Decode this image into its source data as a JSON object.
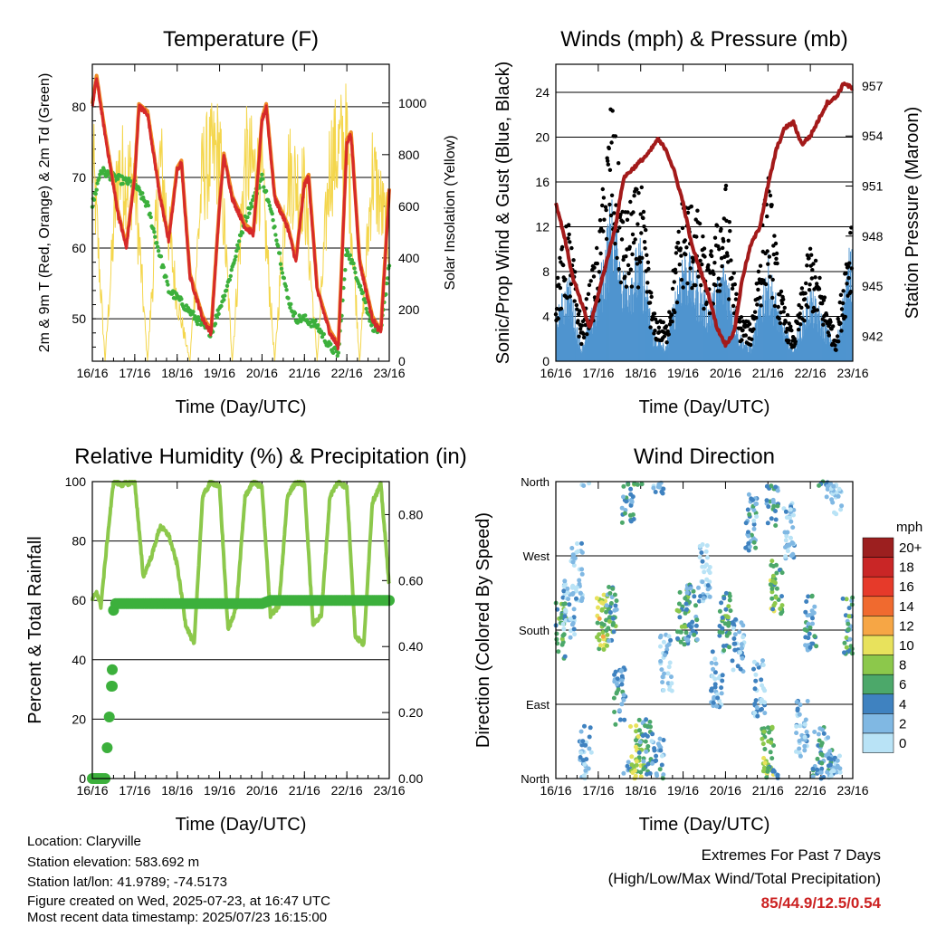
{
  "colors": {
    "temp_2m": "#d62a2a",
    "temp_9m": "#f08a24",
    "dewpoint": "#3cb03c",
    "solar": "#f4d64c",
    "wind_sonic": "#4f94cf",
    "gust": "#000000",
    "pressure": "#a31a1a",
    "rh": "#8cc84b",
    "precip": "#3cb03c",
    "extremes": "#cc2222"
  },
  "info": {
    "location": "Location: Claryville",
    "elevation": "Station elevation: 583.692 m",
    "latlon": "Station lat/lon: 41.9789; -74.5173",
    "created": "Figure created on Wed, 2025-07-23, at 16:47 UTC",
    "recent": "Most recent data timestamp: 2025/07/23 16:15:00"
  },
  "extremes": {
    "title": "Extremes For Past 7 Days",
    "subtitle": "(High/Low/Max Wind/Total Precipitation)",
    "values": "85/44.9/12.5/0.54"
  },
  "chart_data": [
    {
      "type": "line",
      "title": "Temperature (F)",
      "xlabel": "Time (Day/UTC)",
      "ylabel": "2m & 9m T (Red, Orange) & 2m Td (Green)",
      "y2label": "Solar Insolation (Yellow)",
      "x_ticks": [
        "16/16",
        "17/16",
        "18/16",
        "19/16",
        "20/16",
        "21/16",
        "22/16",
        "23/16"
      ],
      "ylim": [
        44,
        86
      ],
      "y_ticks": [
        50,
        60,
        70,
        80
      ],
      "y2lim": [
        0,
        1150
      ],
      "y2_ticks": [
        0,
        200,
        400,
        600,
        800,
        1000
      ],
      "grid": true,
      "series": [
        {
          "name": "2m T",
          "unit": "F",
          "x": [
            0,
            0.1,
            0.3,
            0.6,
            0.8,
            1.0,
            1.1,
            1.3,
            1.6,
            1.8,
            2.0,
            2.1,
            2.3,
            2.6,
            2.8,
            3.0,
            3.1,
            3.3,
            3.6,
            3.8,
            4.0,
            4.1,
            4.3,
            4.6,
            4.8,
            5.0,
            5.1,
            5.3,
            5.6,
            5.8,
            6.0,
            6.1,
            6.3,
            6.6,
            6.8,
            7.0
          ],
          "y": [
            80,
            84,
            76,
            65,
            60,
            70,
            80,
            79,
            67,
            61,
            71,
            72,
            56,
            50,
            48,
            66,
            73,
            67,
            63,
            62,
            78,
            80,
            67,
            63,
            58,
            69,
            70,
            54,
            48,
            46,
            75,
            76,
            58,
            50,
            48,
            68
          ]
        },
        {
          "name": "9m T",
          "unit": "F",
          "x": [
            0,
            1,
            2,
            3,
            4,
            5,
            6,
            7
          ],
          "y": [
            80,
            70,
            71,
            66,
            78,
            69,
            75,
            68
          ]
        },
        {
          "name": "2m Td",
          "unit": "F",
          "x": [
            0,
            0.2,
            0.5,
            1.0,
            1.3,
            1.8,
            2.0,
            2.3,
            2.6,
            2.8,
            3.2,
            3.6,
            4.0,
            4.3,
            4.6,
            4.8,
            5.0,
            5.3,
            5.6,
            5.8,
            6.0,
            6.3,
            6.6,
            6.8,
            7.0
          ],
          "y": [
            66,
            71,
            70,
            69,
            66,
            54,
            53,
            51,
            49,
            48,
            55,
            64,
            70,
            63,
            53,
            50,
            50,
            49,
            46,
            45,
            60,
            55,
            49,
            48,
            58
          ]
        },
        {
          "name": "Solar Insolation",
          "unit": "W/m2",
          "x": [
            0,
            0.3,
            0.6,
            1.0,
            1.3,
            1.6,
            2.0,
            2.3,
            2.6,
            3.0,
            3.3,
            3.6,
            4.0,
            4.3,
            4.6,
            5.0,
            5.3,
            5.6,
            6.0,
            6.3,
            6.6,
            7.0
          ],
          "y": [
            1050,
            0,
            950,
            900,
            0,
            1000,
            300,
            0,
            950,
            1050,
            0,
            1000,
            900,
            0,
            950,
            850,
            0,
            1000,
            1100,
            0,
            950,
            600
          ]
        }
      ]
    },
    {
      "type": "line",
      "title": "Winds (mph) & Pressure (mb)",
      "xlabel": "Time (Day/UTC)",
      "ylabel": "Sonic/Prop Wind & Gust (Blue, Black)",
      "y2label": "Station Pressure (Maroon)",
      "x_ticks": [
        "16/16",
        "17/16",
        "18/16",
        "19/16",
        "20/16",
        "21/16",
        "22/16",
        "23/16"
      ],
      "ylim": [
        0,
        26.5
      ],
      "y_ticks": [
        0,
        4,
        8,
        12,
        16,
        20,
        24
      ],
      "y2lim": [
        940.5,
        958.3
      ],
      "y2_ticks": [
        942,
        945,
        948,
        951,
        954,
        957
      ],
      "grid": true,
      "series": [
        {
          "name": "Sonic/Prop Wind",
          "unit": "mph",
          "x": [
            0,
            0.3,
            0.6,
            1.0,
            1.3,
            1.6,
            2.0,
            2.3,
            2.6,
            3.0,
            3.3,
            3.6,
            4.0,
            4.3,
            4.6,
            5.0,
            5.3,
            5.6,
            6.0,
            6.3,
            6.6,
            7.0
          ],
          "y": [
            3,
            6,
            1,
            5,
            11,
            6,
            8,
            2,
            1,
            8,
            6,
            4,
            7,
            2,
            1,
            7,
            3,
            1,
            5,
            3,
            1,
            9
          ]
        },
        {
          "name": "Gust",
          "unit": "mph",
          "x": [
            0,
            0.3,
            0.6,
            1.0,
            1.3,
            1.6,
            2.0,
            2.3,
            2.6,
            3.0,
            3.3,
            3.6,
            4.0,
            4.3,
            4.6,
            5.0,
            5.3,
            5.6,
            6.0,
            6.3,
            6.6,
            7.0
          ],
          "y": [
            7,
            12,
            3,
            10,
            22,
            12,
            15,
            4,
            3,
            14,
            13,
            8,
            15,
            4,
            3,
            16,
            6,
            2,
            10,
            6,
            2,
            14
          ]
        },
        {
          "name": "Station Pressure",
          "unit": "mb",
          "x": [
            0,
            0.2,
            0.4,
            0.6,
            0.8,
            1.0,
            1.2,
            1.4,
            1.6,
            1.8,
            2.0,
            2.2,
            2.4,
            2.6,
            2.8,
            3.0,
            3.2,
            3.4,
            3.6,
            3.8,
            4.0,
            4.2,
            4.4,
            4.6,
            4.8,
            5.0,
            5.2,
            5.4,
            5.6,
            5.8,
            6.0,
            6.2,
            6.4,
            6.6,
            6.8,
            7.0
          ],
          "y": [
            950,
            948,
            945.5,
            944,
            942.5,
            944.5,
            946.5,
            948.5,
            951.5,
            952,
            952.5,
            953,
            953.8,
            953.2,
            951.8,
            950,
            947.5,
            946,
            944.5,
            942.5,
            941.5,
            942.2,
            945.5,
            947.5,
            948.5,
            951,
            953.2,
            954.5,
            954.8,
            953.5,
            954,
            955,
            956,
            956.3,
            957.2,
            956.8
          ]
        }
      ]
    },
    {
      "type": "line",
      "title": "Relative Humidity (%) & Precipitation (in)",
      "xlabel": "Time (Day/UTC)",
      "ylabel": "Percent & Total Rainfall",
      "x_ticks": [
        "16/16",
        "17/16",
        "18/16",
        "19/16",
        "20/16",
        "21/16",
        "22/16",
        "23/16"
      ],
      "ylim": [
        0,
        100
      ],
      "y_ticks": [
        0,
        20,
        40,
        60,
        80,
        100
      ],
      "y2lim": [
        0,
        0.9
      ],
      "y2_ticks": [
        "0.00",
        "0.20",
        "0.40",
        "0.60",
        "0.80"
      ],
      "grid": true,
      "series": [
        {
          "name": "Relative Humidity",
          "unit": "%",
          "x": [
            0,
            0.1,
            0.2,
            0.35,
            0.5,
            0.7,
            1.0,
            1.2,
            1.4,
            1.6,
            1.8,
            2.0,
            2.2,
            2.4,
            2.6,
            2.8,
            3.0,
            3.2,
            3.4,
            3.6,
            3.8,
            4.0,
            4.2,
            4.4,
            4.6,
            4.8,
            5.0,
            5.2,
            5.4,
            5.6,
            5.8,
            6.0,
            6.2,
            6.4,
            6.6,
            6.8,
            7.0
          ],
          "y": [
            60,
            63,
            58,
            80,
            100,
            99,
            100,
            68,
            75,
            85,
            82,
            72,
            52,
            45,
            95,
            100,
            98,
            50,
            58,
            95,
            100,
            98,
            55,
            58,
            95,
            100,
            99,
            52,
            55,
            95,
            100,
            98,
            48,
            45,
            93,
            99,
            65
          ]
        },
        {
          "name": "Total Precipitation",
          "unit": "in",
          "x": [
            0,
            0.3,
            0.45,
            0.48,
            0.5,
            0.55,
            1.0,
            2.0,
            3.0,
            4.0,
            4.2,
            5.0,
            6.0,
            7.0
          ],
          "y": [
            0,
            0,
            0.28,
            0.33,
            0.51,
            0.53,
            0.53,
            0.53,
            0.53,
            0.53,
            0.54,
            0.54,
            0.54,
            0.54
          ]
        }
      ]
    },
    {
      "type": "scatter",
      "title": "Wind Direction",
      "xlabel": "Time (Day/UTC)",
      "ylabel": "Direction (Colored By Speed)",
      "x_ticks": [
        "16/16",
        "17/16",
        "18/16",
        "19/16",
        "20/16",
        "21/16",
        "22/16",
        "23/16"
      ],
      "y_ticks": [
        "North",
        "East",
        "South",
        "West",
        "North"
      ],
      "ylim": [
        0,
        360
      ],
      "grid": true,
      "colorbar": {
        "title": "mph",
        "labels": [
          "20+",
          "18",
          "16",
          "14",
          "12",
          "10",
          "8",
          "6",
          "4",
          "2",
          "0"
        ],
        "colors": [
          "#9c1f1f",
          "#c92626",
          "#e63a2a",
          "#f06a2f",
          "#f6a645",
          "#e8e25c",
          "#8cc84b",
          "#4ca86a",
          "#3f82c0",
          "#80b8e3",
          "#b9e3f6"
        ]
      },
      "clusters": [
        {
          "x": 0.1,
          "dir": 180,
          "speed": 6
        },
        {
          "x": 0.3,
          "dir": 205,
          "speed": 2
        },
        {
          "x": 0.5,
          "dir": 250,
          "speed": 1
        },
        {
          "x": 0.7,
          "dir": 30,
          "speed": 2
        },
        {
          "x": 1.1,
          "dir": 190,
          "speed": 9
        },
        {
          "x": 1.3,
          "dir": 200,
          "speed": 5
        },
        {
          "x": 1.5,
          "dir": 100,
          "speed": 4
        },
        {
          "x": 1.7,
          "dir": 345,
          "speed": 4
        },
        {
          "x": 1.9,
          "dir": 30,
          "speed": 8
        },
        {
          "x": 2.1,
          "dir": 40,
          "speed": 5
        },
        {
          "x": 2.4,
          "dir": 20,
          "speed": 3
        },
        {
          "x": 2.6,
          "dir": 140,
          "speed": 1
        },
        {
          "x": 3.0,
          "dir": 195,
          "speed": 6
        },
        {
          "x": 3.2,
          "dir": 200,
          "speed": 4
        },
        {
          "x": 3.5,
          "dir": 250,
          "speed": 1
        },
        {
          "x": 3.8,
          "dir": 120,
          "speed": 2
        },
        {
          "x": 4.0,
          "dir": 190,
          "speed": 6
        },
        {
          "x": 4.3,
          "dir": 160,
          "speed": 2
        },
        {
          "x": 4.6,
          "dir": 310,
          "speed": 3
        },
        {
          "x": 4.8,
          "dir": 110,
          "speed": 2
        },
        {
          "x": 5.0,
          "dir": 30,
          "speed": 8
        },
        {
          "x": 5.1,
          "dir": 340,
          "speed": 4
        },
        {
          "x": 5.2,
          "dir": 230,
          "speed": 7
        },
        {
          "x": 5.5,
          "dir": 300,
          "speed": 1
        },
        {
          "x": 5.8,
          "dir": 60,
          "speed": 2
        },
        {
          "x": 6.0,
          "dir": 190,
          "speed": 4
        },
        {
          "x": 6.2,
          "dir": 30,
          "speed": 4
        },
        {
          "x": 6.5,
          "dir": 15,
          "speed": 3
        },
        {
          "x": 6.6,
          "dir": 355,
          "speed": 1
        },
        {
          "x": 6.9,
          "dir": 185,
          "speed": 5
        }
      ]
    }
  ]
}
